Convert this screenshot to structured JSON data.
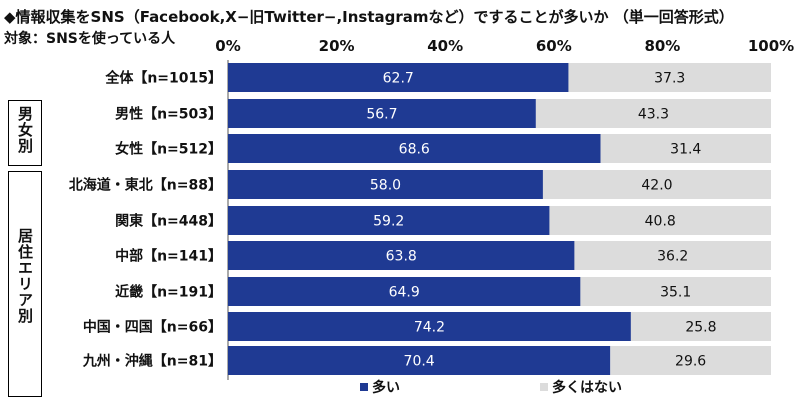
{
  "header": {
    "title": "◆情報収集をSNS（Facebook,X−旧Twitter−,Instagramなど）ですることが多いか （単一回答形式）",
    "subtitle": "対象：SNSを使っている人"
  },
  "groups": [
    {
      "label": "男女別"
    },
    {
      "label": "居住エリア別"
    }
  ],
  "colors": {
    "series_main": "#1f3a93",
    "series_other": "#dcdcdc",
    "text_on_dark": "#ffffff",
    "text_on_light": "#111111",
    "grid": "#bbbbbb"
  },
  "chart_data": {
    "type": "bar",
    "orientation": "horizontal",
    "stacked": true,
    "xlim": [
      0,
      100
    ],
    "xticks": [
      "0%",
      "20%",
      "40%",
      "60%",
      "80%",
      "100%"
    ],
    "categories": [
      "全体【n=1015】",
      "男性【n=503】",
      "女性【n=512】",
      "北海道・東北【n=88】",
      "関東【n=448】",
      "中部【n=141】",
      "近畿【n=191】",
      "中国・四国【n=66】",
      "九州・沖縄【n=81】"
    ],
    "series": [
      {
        "name": "多い",
        "values": [
          62.7,
          56.7,
          68.6,
          58.0,
          59.2,
          63.8,
          64.9,
          74.2,
          70.4
        ]
      },
      {
        "name": "多くはない",
        "values": [
          37.3,
          43.3,
          31.4,
          42.0,
          40.8,
          36.2,
          35.1,
          25.8,
          29.6
        ]
      }
    ],
    "legend_position": "bottom"
  }
}
